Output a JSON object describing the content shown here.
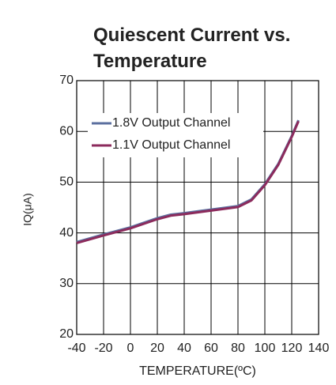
{
  "chart_data": {
    "type": "line",
    "title": "Quiescent Current vs. Temperature",
    "x_label": "TEMPERATURE(ºC)",
    "y_label": "IQ(μA)",
    "x": [
      -40,
      -20,
      0,
      20,
      30,
      40,
      60,
      80,
      90,
      100,
      110,
      120,
      125
    ],
    "series": [
      {
        "name": "1.8V Output Channel",
        "color": "#5b6f9f",
        "values": [
          38.2,
          39.7,
          41.1,
          42.9,
          43.6,
          43.9,
          44.6,
          45.3,
          46.6,
          49.6,
          53.6,
          59.1,
          62.2
        ]
      },
      {
        "name": "1.1V Output Channel",
        "color": "#8c2b5c",
        "values": [
          38.0,
          39.5,
          40.9,
          42.7,
          43.4,
          43.7,
          44.4,
          45.1,
          46.4,
          49.4,
          53.4,
          58.9,
          62.0
        ]
      }
    ],
    "xlim": [
      -40,
      140
    ],
    "xticks": [
      -40,
      -20,
      0,
      20,
      40,
      60,
      80,
      100,
      120,
      140
    ],
    "ylim": [
      20,
      70
    ],
    "yticks": [
      20,
      30,
      40,
      50,
      60,
      70
    ],
    "grid": true,
    "legend": "upper left"
  }
}
